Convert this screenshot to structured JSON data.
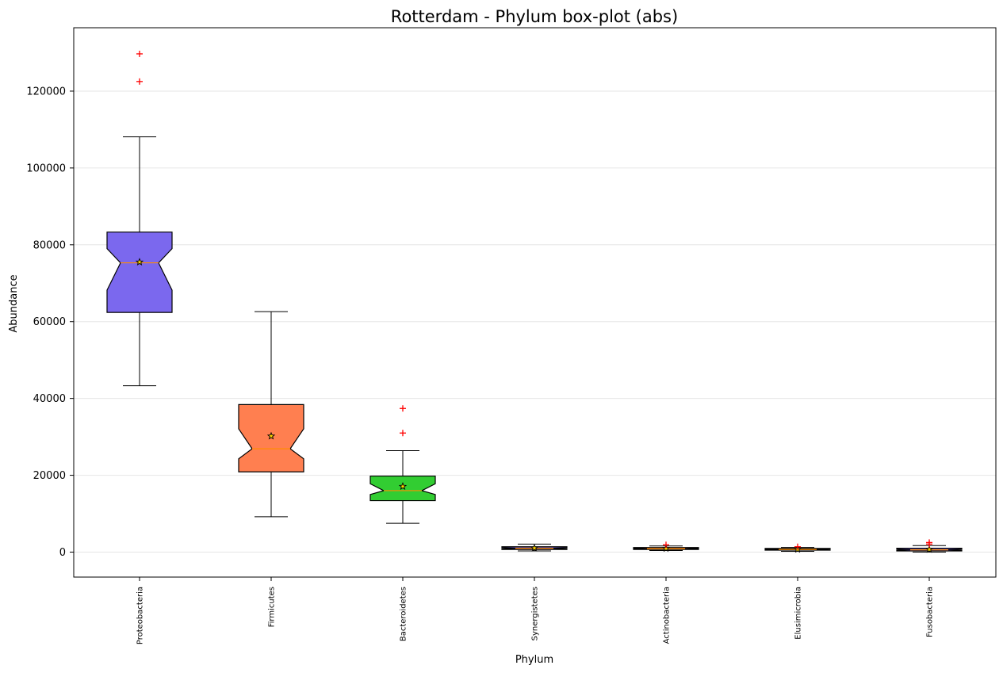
{
  "chart_data": {
    "type": "box",
    "title": "Rotterdam - Phylum box-plot (abs)",
    "xlabel": "Phylum",
    "ylabel": "Abundance",
    "ylim": [
      -6500,
      136500
    ],
    "yticks": [
      0,
      20000,
      40000,
      60000,
      80000,
      100000,
      120000
    ],
    "ytick_labels": [
      "0",
      "20000",
      "40000",
      "60000",
      "80000",
      "100000",
      "120000"
    ],
    "grid": "horizontal",
    "notched": true,
    "categories": [
      "Proteobacteria",
      "Firmicutes",
      "Bacteroidetes",
      "Synergistetes",
      "Actinobacteria",
      "Elusimicrobia",
      "Fusobacteria"
    ],
    "boxes": [
      {
        "name": "Proteobacteria",
        "color": "#7b68ee",
        "whisker_low": 43300,
        "q1": 62400,
        "median": 75300,
        "q3": 83300,
        "whisker_high": 108100,
        "mean": 75500,
        "notch_low": 68200,
        "notch_high": 79000,
        "outliers": [
          122500,
          129700
        ]
      },
      {
        "name": "Firmicutes",
        "color": "#ff7f50",
        "whisker_low": 9200,
        "q1": 20900,
        "median": 26900,
        "q3": 38400,
        "whisker_high": 62600,
        "mean": 30200,
        "notch_low": 24300,
        "notch_high": 32100,
        "outliers": []
      },
      {
        "name": "Bacteroidetes",
        "color": "#32cd32",
        "whisker_low": 7500,
        "q1": 13400,
        "median": 16000,
        "q3": 19800,
        "whisker_high": 26400,
        "mean": 17100,
        "notch_low": 15000,
        "notch_high": 17800,
        "outliers": [
          31000,
          37400
        ]
      },
      {
        "name": "Synergistetes",
        "color": "#6a5acd",
        "whisker_low": 300,
        "q1": 700,
        "median": 1000,
        "q3": 1400,
        "whisker_high": 2100,
        "mean": 1050,
        "notch_low": 850,
        "notch_high": 1150,
        "outliers": []
      },
      {
        "name": "Actinobacteria",
        "color": "#ff7f50",
        "whisker_low": 400,
        "q1": 700,
        "median": 900,
        "q3": 1200,
        "whisker_high": 1600,
        "mean": 950,
        "notch_low": 800,
        "notch_high": 1050,
        "outliers": [
          1900
        ]
      },
      {
        "name": "Elusimicrobia",
        "color": "#32cd32",
        "whisker_low": 200,
        "q1": 500,
        "median": 700,
        "q3": 950,
        "whisker_high": 1200,
        "mean": 720,
        "notch_low": 600,
        "notch_high": 800,
        "outliers": [
          1400
        ]
      },
      {
        "name": "Fusobacteria",
        "color": "#6a5acd",
        "whisker_low": 0,
        "q1": 300,
        "median": 600,
        "q3": 1000,
        "whisker_high": 1700,
        "mean": 700,
        "notch_low": 450,
        "notch_high": 750,
        "outliers": [
          2100,
          2500
        ]
      }
    ]
  }
}
